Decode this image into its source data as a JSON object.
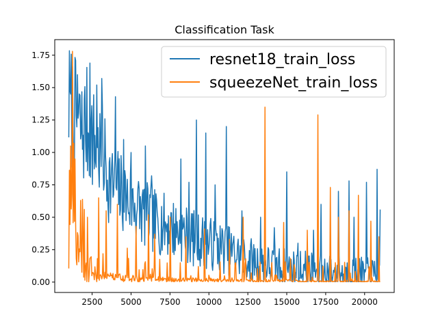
{
  "chart_data": {
    "type": "line",
    "title": "Classification Task",
    "xlabel": "",
    "ylabel": "",
    "xlim": [
      100,
      21900
    ],
    "ylim": [
      -0.08,
      1.87
    ],
    "x_ticks": [
      2500,
      5000,
      7500,
      10000,
      12500,
      15000,
      17500,
      20000
    ],
    "x_tick_labels": [
      "2500",
      "5000",
      "7500",
      "10000",
      "12500",
      "15000",
      "17500",
      "20000"
    ],
    "y_ticks": [
      0,
      0.25,
      0.5,
      0.75,
      1.0,
      1.25,
      1.5,
      1.75
    ],
    "y_tick_labels": [
      "0.00",
      "0.25",
      "0.50",
      "0.75",
      "1.00",
      "1.25",
      "1.50",
      "1.75"
    ],
    "grid": false,
    "legend_placement": "top-right",
    "series": [
      {
        "name": "resnet18_train_loss",
        "color": "#1f77b4",
        "points": [
          [
            1000,
            1.38
          ],
          [
            1300,
            1.3
          ],
          [
            1600,
            1.22
          ],
          [
            1900,
            1.14
          ],
          [
            2100,
            1.23
          ],
          [
            2400,
            1.15
          ],
          [
            2700,
            1.05
          ],
          [
            3000,
            1.0
          ],
          [
            3300,
            0.95
          ],
          [
            3500,
            0.82
          ],
          [
            3800,
            0.74
          ],
          [
            4000,
            0.73
          ],
          [
            4300,
            0.7
          ],
          [
            4600,
            0.66
          ],
          [
            4900,
            0.62
          ],
          [
            5200,
            0.6
          ],
          [
            5500,
            0.57
          ],
          [
            5800,
            0.53
          ],
          [
            6100,
            0.5
          ],
          [
            6500,
            0.47
          ],
          [
            7000,
            0.45
          ],
          [
            7500,
            0.42
          ],
          [
            8000,
            0.4
          ],
          [
            8500,
            0.37
          ],
          [
            9000,
            0.34
          ],
          [
            9500,
            0.32
          ],
          [
            10000,
            0.3
          ],
          [
            10500,
            0.28
          ],
          [
            11000,
            0.26
          ],
          [
            11500,
            0.23
          ],
          [
            12000,
            0.2
          ],
          [
            12500,
            0.18
          ],
          [
            13000,
            0.16
          ],
          [
            13500,
            0.14
          ],
          [
            14000,
            0.13
          ],
          [
            14500,
            0.12
          ],
          [
            15000,
            0.11
          ],
          [
            15500,
            0.1
          ],
          [
            16000,
            0.1
          ],
          [
            16500,
            0.09
          ],
          [
            17000,
            0.08
          ],
          [
            17500,
            0.08
          ],
          [
            18000,
            0.07
          ],
          [
            18500,
            0.07
          ],
          [
            19000,
            0.06
          ],
          [
            19500,
            0.06
          ],
          [
            20000,
            0.05
          ],
          [
            20500,
            0.05
          ],
          [
            21000,
            0.05
          ]
        ],
        "spikes": [
          [
            1100,
            1.45
          ],
          [
            1550,
            1.6
          ],
          [
            2350,
            1.69
          ],
          [
            2800,
            1.52
          ],
          [
            3100,
            1.57
          ],
          [
            4000,
            1.43
          ],
          [
            4500,
            1.1
          ],
          [
            5000,
            1.0
          ],
          [
            5900,
            1.05
          ],
          [
            6300,
            0.82
          ],
          [
            8200,
            0.95
          ],
          [
            8700,
            0.77
          ],
          [
            9200,
            1.25
          ],
          [
            9800,
            1.15
          ],
          [
            10400,
            0.75
          ],
          [
            11100,
            1.2
          ],
          [
            12100,
            0.55
          ],
          [
            13300,
            0.5
          ],
          [
            14200,
            0.42
          ],
          [
            15000,
            0.85
          ],
          [
            15700,
            0.3
          ],
          [
            16700,
            0.4
          ],
          [
            17200,
            0.6
          ],
          [
            18300,
            0.7
          ],
          [
            19000,
            0.78
          ],
          [
            19300,
            0.5
          ],
          [
            20100,
            0.77
          ],
          [
            20800,
            0.87
          ],
          [
            21000,
            0.56
          ]
        ]
      },
      {
        "name": "squeezeNet_train_loss",
        "color": "#ff7f0e",
        "points": [
          [
            1000,
            1.28
          ],
          [
            1150,
            0.9
          ],
          [
            1300,
            0.55
          ],
          [
            1500,
            0.38
          ],
          [
            1700,
            0.28
          ],
          [
            2000,
            0.2
          ],
          [
            2300,
            0.14
          ],
          [
            2700,
            0.1
          ],
          [
            3000,
            0.08
          ],
          [
            3500,
            0.07
          ],
          [
            4000,
            0.06
          ],
          [
            5000,
            0.05
          ],
          [
            6000,
            0.04
          ],
          [
            7000,
            0.04
          ],
          [
            8000,
            0.03
          ],
          [
            9000,
            0.03
          ],
          [
            10000,
            0.03
          ],
          [
            11000,
            0.02
          ],
          [
            12000,
            0.02
          ],
          [
            13000,
            0.02
          ],
          [
            14000,
            0.02
          ],
          [
            15000,
            0.02
          ],
          [
            16000,
            0.01
          ],
          [
            17000,
            0.01
          ],
          [
            18000,
            0.01
          ],
          [
            19000,
            0.01
          ],
          [
            20000,
            0.01
          ],
          [
            21000,
            0.01
          ]
        ],
        "spikes": [
          [
            1100,
            1.05
          ],
          [
            1250,
            1.78
          ],
          [
            1400,
            0.95
          ],
          [
            1750,
            0.63
          ],
          [
            2200,
            0.5
          ],
          [
            2900,
            0.65
          ],
          [
            3400,
            0.55
          ],
          [
            4100,
            0.6
          ],
          [
            5300,
            0.43
          ],
          [
            6100,
            0.52
          ],
          [
            6500,
            0.37
          ],
          [
            7500,
            0.5
          ],
          [
            8500,
            0.35
          ],
          [
            9700,
            0.41
          ],
          [
            11300,
            0.33
          ],
          [
            12200,
            0.5
          ],
          [
            13600,
            1.35
          ],
          [
            14800,
            0.46
          ],
          [
            16300,
            0.4
          ],
          [
            17000,
            1.29
          ],
          [
            17800,
            0.73
          ],
          [
            18300,
            0.5
          ],
          [
            19000,
            0.55
          ],
          [
            19600,
            0.67
          ],
          [
            20400,
            0.47
          ],
          [
            20900,
            0.35
          ]
        ]
      }
    ]
  }
}
